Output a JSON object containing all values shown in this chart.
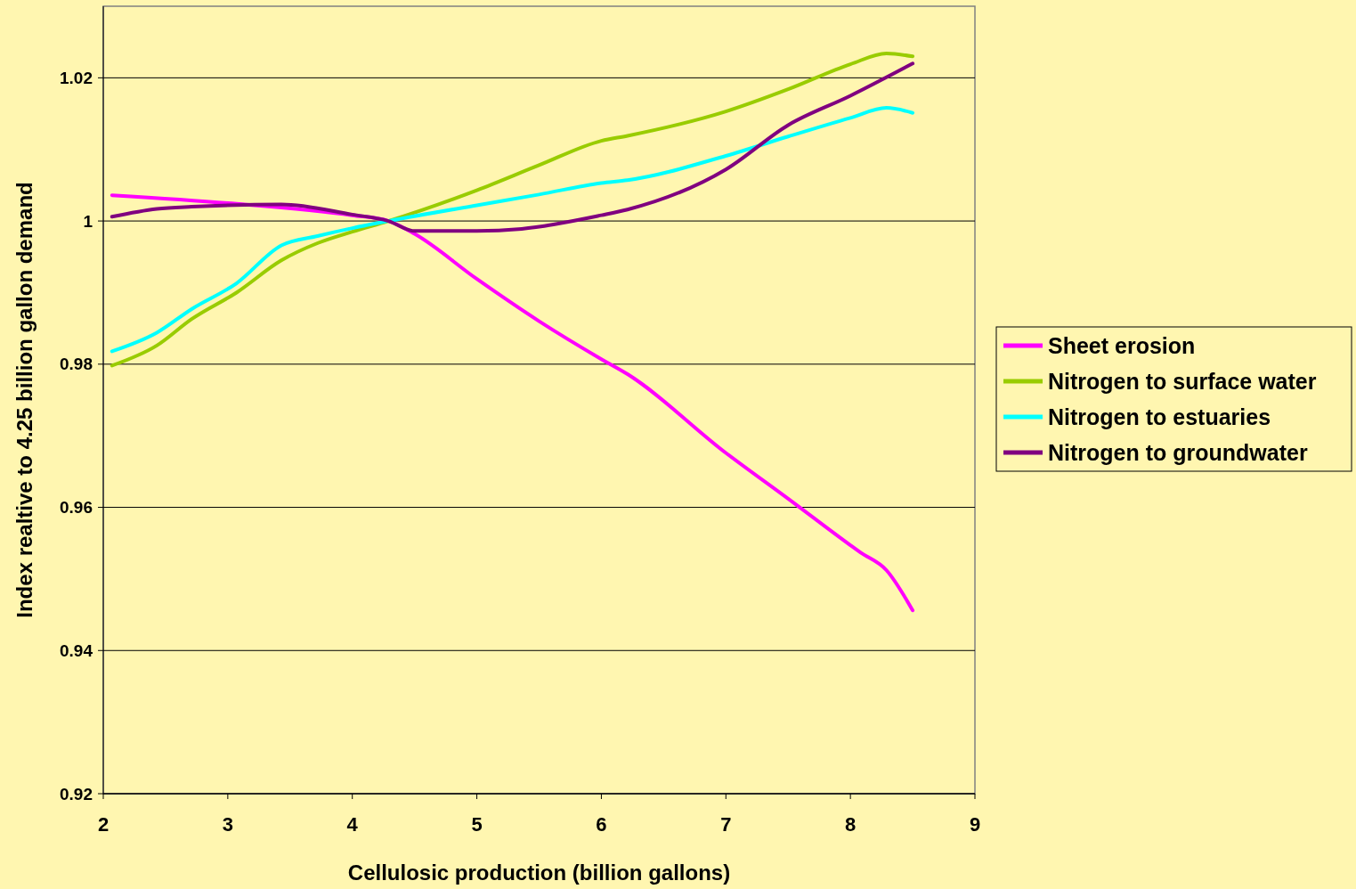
{
  "chart_data": {
    "type": "line",
    "xlabel": "Cellulosic production (billion gallons)",
    "ylabel": "Index realtive to 4.25 billion gallon demand",
    "xlim": [
      2,
      9
    ],
    "xticks": [
      2,
      3,
      4,
      5,
      6,
      7,
      8,
      9
    ],
    "ylim": [
      0.92,
      1.03
    ],
    "yticks": [
      0.92,
      0.94,
      0.96,
      0.98,
      1,
      1.02
    ],
    "grid": "y",
    "legend": "right",
    "marker": "none",
    "line_style": "solid",
    "series": [
      {
        "name": "Sheet erosion",
        "color": "#ff00ff",
        "x": [
          2.07,
          3,
          4,
          4.29,
          4.5,
          5,
          5.5,
          6,
          6.21,
          7,
          7.5,
          8,
          8.08,
          8.29,
          8.5
        ],
        "values": [
          1.0036,
          1.0025,
          1.0008,
          1.0,
          0.9982,
          0.9919,
          0.986,
          0.9807,
          0.9786,
          0.9676,
          0.9612,
          0.9547,
          0.9537,
          0.9512,
          0.9456
        ]
      },
      {
        "name": "Nitrogen to surface water",
        "color": "#99cc00",
        "x": [
          2.07,
          2.43,
          2.71,
          3.07,
          3.43,
          3.72,
          4,
          4.29,
          5,
          5.5,
          6,
          6.21,
          7,
          7.5,
          8,
          8.29,
          8.5
        ],
        "values": [
          0.9798,
          0.9826,
          0.9863,
          0.99,
          0.9945,
          0.9969,
          0.9985,
          1.0,
          1.0043,
          1.0078,
          1.0112,
          1.0119,
          1.0153,
          1.0184,
          1.0219,
          1.0234,
          1.023
        ]
      },
      {
        "name": "Nitrogen to estuaries",
        "color": "#00ffff",
        "x": [
          2.07,
          2.43,
          2.71,
          3.07,
          3.43,
          3.72,
          4,
          4.29,
          5,
          5.5,
          6,
          6.21,
          7,
          7.5,
          8,
          8.29,
          8.5
        ],
        "values": [
          0.9818,
          0.9844,
          0.9877,
          0.9913,
          0.9966,
          0.9979,
          0.999,
          1.0,
          1.0022,
          1.0037,
          1.0053,
          1.0057,
          1.0091,
          1.0118,
          1.0144,
          1.0158,
          1.0151
        ]
      },
      {
        "name": "Nitrogen to groundwater",
        "color": "#800080",
        "x": [
          2.07,
          2.43,
          2.71,
          3.43,
          4,
          4.29,
          4.5,
          5,
          5.36,
          6,
          6.21,
          7,
          7.5,
          8,
          8.5
        ],
        "values": [
          1.0006,
          1.0017,
          1.002,
          1.0023,
          1.0009,
          1.0,
          0.9986,
          0.9986,
          0.9989,
          1.0008,
          1.0016,
          1.0072,
          1.0134,
          1.0175,
          1.022
        ]
      }
    ]
  }
}
